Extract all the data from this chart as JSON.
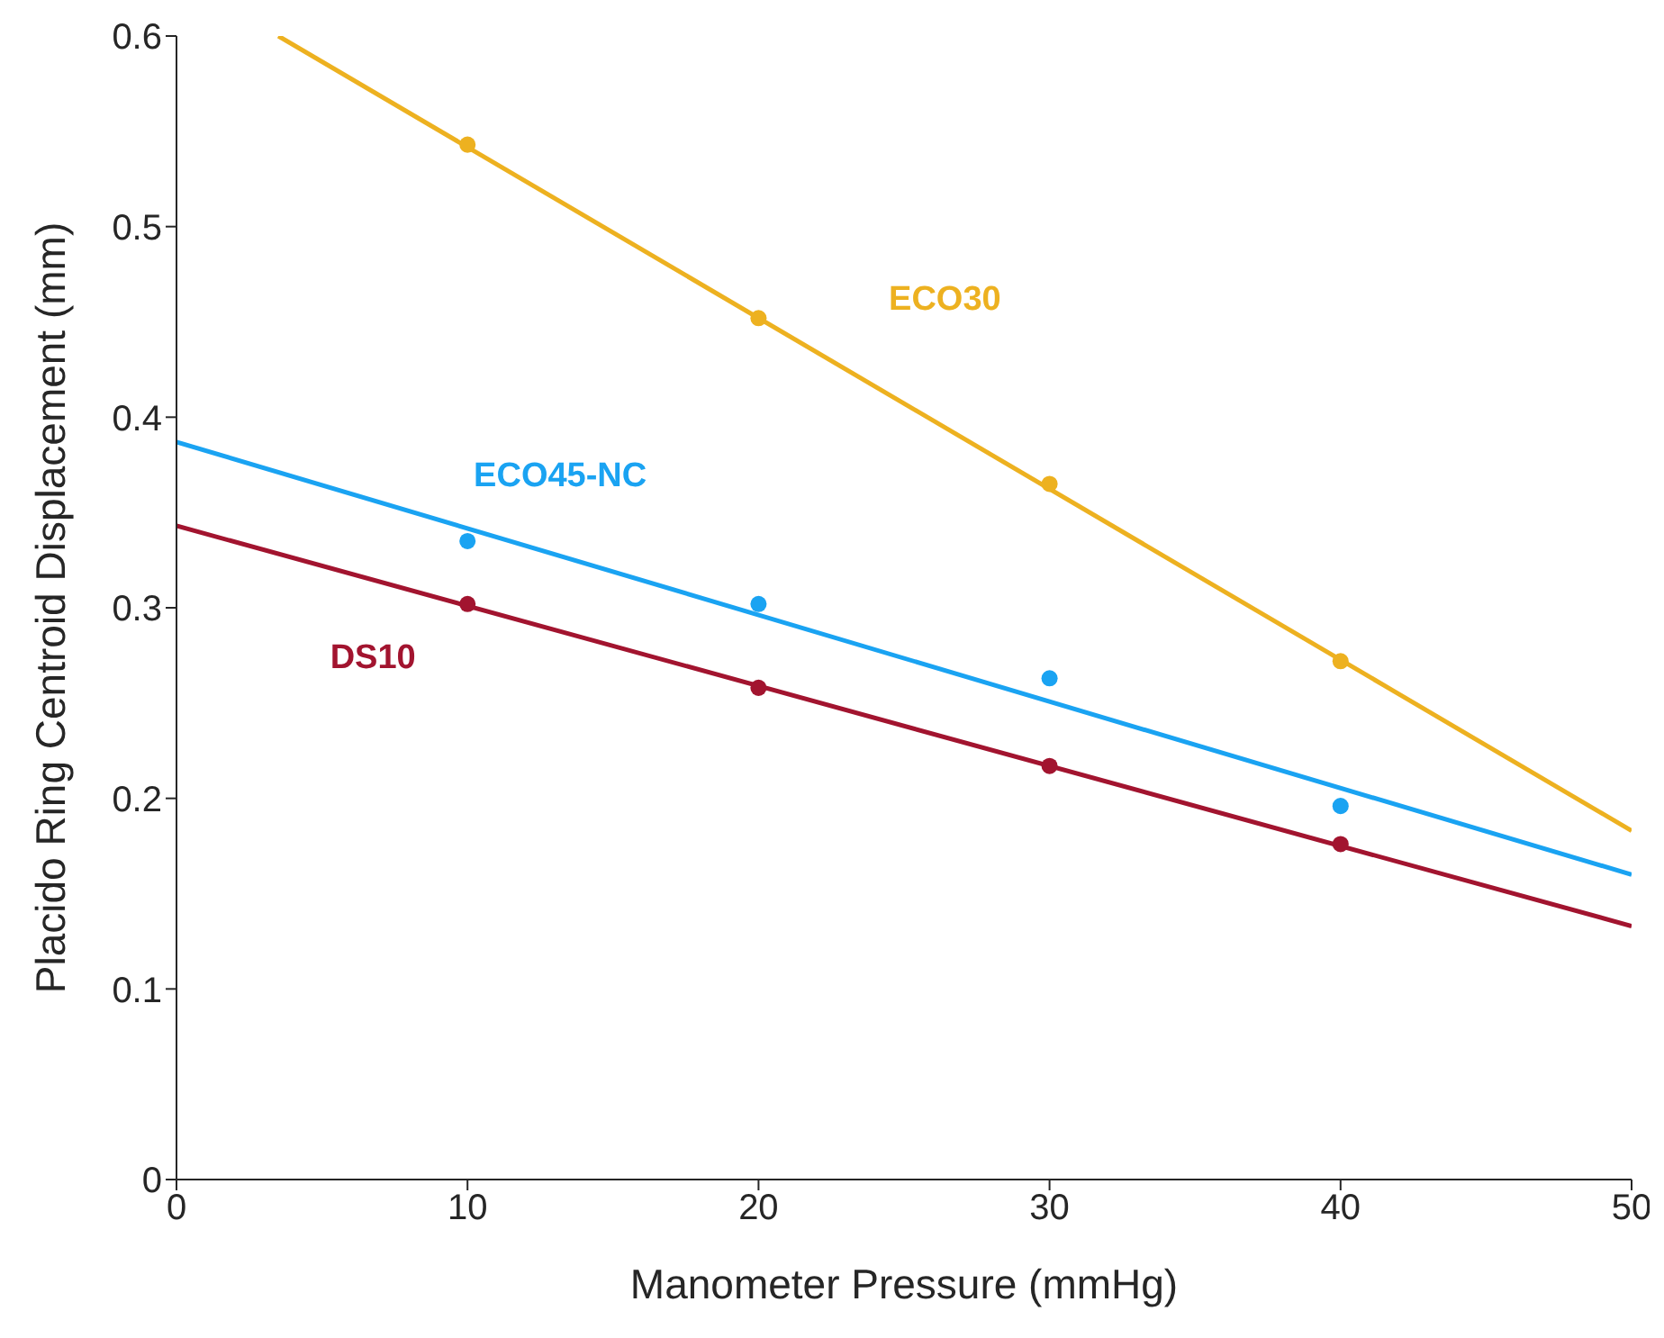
{
  "chart_data": {
    "type": "scatter",
    "xlabel": "Manometer Pressure (mmHg)",
    "ylabel": "Placido Ring Centroid Displacement (mm)",
    "xlim": [
      0,
      50
    ],
    "xticks": [
      0,
      10,
      20,
      30,
      40,
      50
    ],
    "ylim": [
      0,
      0.6
    ],
    "yticks": [
      0,
      0.1,
      0.2,
      0.3,
      0.4,
      0.5,
      0.6
    ],
    "x": [
      10,
      20,
      30,
      40
    ],
    "grid": false,
    "legend": false,
    "series": [
      {
        "name": "ECO30",
        "marker": "circle",
        "color": "#edb120",
        "values": [
          0.543,
          0.452,
          0.365,
          0.272
        ]
      },
      {
        "name": "ECO45-NC",
        "marker": "circle",
        "color": "#1aa3f2",
        "values": [
          0.335,
          0.302,
          0.263,
          0.196
        ]
      },
      {
        "name": "DS10",
        "marker": "circle",
        "color": "#a2142f",
        "values": [
          0.302,
          0.258,
          0.217,
          0.176
        ]
      },
      {
        "type": "line",
        "marker": "none",
        "color": "#edb120",
        "x": [
          3.5,
          50
        ],
        "values": [
          0.6,
          0.183
        ]
      },
      {
        "type": "line",
        "marker": "none",
        "color": "#1aa3f2",
        "x": [
          0,
          50
        ],
        "values": [
          0.387,
          0.16
        ]
      },
      {
        "type": "line",
        "marker": "none",
        "color": "#a2142f",
        "x": [
          0,
          50
        ],
        "values": [
          0.343,
          0.133
        ]
      }
    ]
  }
}
